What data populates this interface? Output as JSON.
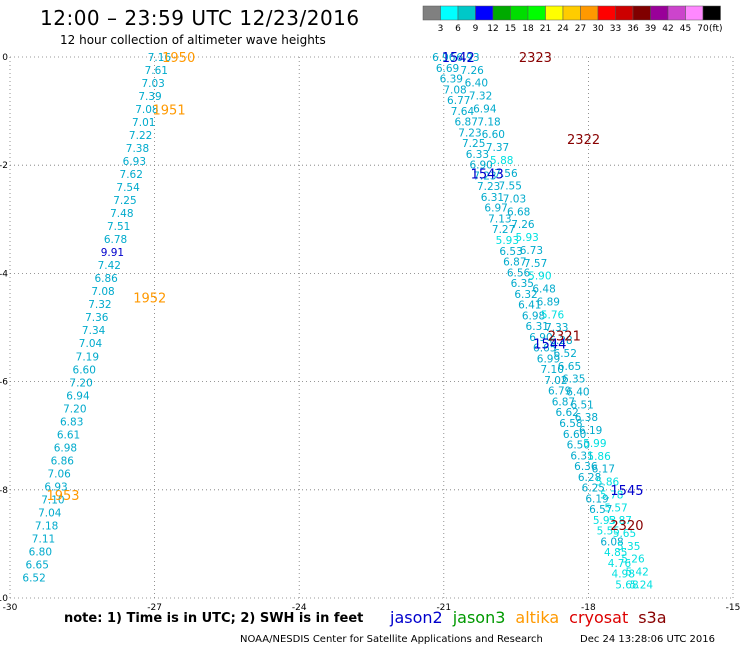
{
  "header": {
    "title": "12:00 – 23:59 UTC 12/23/2016",
    "subtitle": "12 hour collection of altimeter wave heights"
  },
  "color_scale": {
    "colors": [
      "#808080",
      "#00ffff",
      "#00c8c8",
      "#0000ff",
      "#00aa00",
      "#00dd00",
      "#00ff00",
      "#ffff00",
      "#ffcc00",
      "#ff9900",
      "#ff0000",
      "#cc0000",
      "#800000",
      "#990099",
      "#cc44cc",
      "#ff88ff",
      "#000000"
    ],
    "labels": [
      "3",
      "6",
      "9",
      "12",
      "15",
      "18",
      "21",
      "24",
      "27",
      "30",
      "33",
      "36",
      "39",
      "42",
      "45",
      "70"
    ],
    "unit": "(ft)"
  },
  "notes": {
    "note": "note:  1) Time is in UTC;  2) SWH is in feet"
  },
  "missions": [
    {
      "name": "jason2",
      "color": "#0000cc"
    },
    {
      "name": "jason3",
      "color": "#009900"
    },
    {
      "name": "altika",
      "color": "#ff9900"
    },
    {
      "name": "cryosat",
      "color": "#dd0000"
    },
    {
      "name": "s3a",
      "color": "#880000"
    }
  ],
  "footer": {
    "credit": "NOAA/NESDIS Center for Satellite Applications and Research",
    "stamp": "Dec 24 13:28:06 UTC 2016"
  },
  "chart_data": {
    "type": "scatter",
    "xlim": [
      -30,
      -15
    ],
    "ylim": [
      -10,
      0
    ],
    "x_ticks": [
      -30,
      -27,
      -24,
      -21,
      -18,
      -15
    ],
    "y_ticks": [
      0,
      -2,
      -4,
      -6,
      -8,
      -10
    ],
    "grid": true,
    "colors": {
      "low": "#00aacc",
      "mid": "#00e0e0",
      "dark": "#0000cc"
    },
    "track_labels": [
      {
        "text": "1950",
        "x": -26.5,
        "y": 0.0,
        "color": "#ff9900"
      },
      {
        "text": "1951",
        "x": -26.7,
        "y": -0.97,
        "color": "#ff9900"
      },
      {
        "text": "1952",
        "x": -27.1,
        "y": -4.45,
        "color": "#ff9900"
      },
      {
        "text": "1953",
        "x": -28.9,
        "y": -8.1,
        "color": "#ff9900"
      },
      {
        "text": "1542",
        "x": -20.7,
        "y": 0.0,
        "color": "#0000cc"
      },
      {
        "text": "1543",
        "x": -20.1,
        "y": -2.15,
        "color": "#0000cc"
      },
      {
        "text": "1544",
        "x": -18.8,
        "y": -5.3,
        "color": "#0000cc"
      },
      {
        "text": "1545",
        "x": -17.2,
        "y": -8.0,
        "color": "#0000cc"
      },
      {
        "text": "2323",
        "x": -19.1,
        "y": 0.0,
        "color": "#880000"
      },
      {
        "text": "2322",
        "x": -18.1,
        "y": -1.52,
        "color": "#880000"
      },
      {
        "text": "2321",
        "x": -18.5,
        "y": -5.15,
        "color": "#880000"
      },
      {
        "text": "2320",
        "x": -17.2,
        "y": -8.65,
        "color": "#880000"
      }
    ],
    "tracks": [
      {
        "name": "altika",
        "x_start": -26.9,
        "x_end": -29.5,
        "y_start": 0.0,
        "y_end": -9.62,
        "values": [
          "7.16",
          "7.61",
          "7.03",
          "7.39",
          "7.08",
          "7.01",
          "7.22",
          "7.38",
          "6.93",
          "7.62",
          "7.54",
          "7.25",
          "7.48",
          "7.51",
          "6.78",
          "9.91",
          "7.42",
          "6.86",
          "7.08",
          "7.32",
          "7.36",
          "7.34",
          "7.04",
          "7.19",
          "6.60",
          "7.20",
          "6.94",
          "7.20",
          "6.83",
          "6.61",
          "6.98",
          "6.86",
          "7.06",
          "6.93",
          "7.10",
          "7.04",
          "7.18",
          "7.11",
          "6.80",
          "6.65",
          "6.52"
        ]
      },
      {
        "name": "jason2",
        "x_start": -21.0,
        "x_end": -17.2,
        "y_start": 0.0,
        "y_end": -9.75,
        "values": [
          "6.96",
          "6.69",
          "6.39",
          "7.08",
          "6.77",
          "7.64",
          "6.87",
          "7.23",
          "7.25",
          "6.33",
          "6.90",
          "7.23",
          "7.23",
          "6.31",
          "6.97",
          "7.13",
          "7.27",
          "5.93",
          "6.53",
          "6.87",
          "6.56",
          "6.35",
          "6.32",
          "6.41",
          "6.98",
          "6.31",
          "6.90",
          "6.65",
          "6.99",
          "7.10",
          "7.02",
          "6.79",
          "6.87",
          "6.62",
          "6.58",
          "6.60",
          "6.50",
          "6.31",
          "6.36",
          "6.28",
          "6.25",
          "6.19",
          "6.57",
          "5.93",
          "5.55",
          "6.08",
          "4.85",
          "4.76",
          "4.98",
          "5.68"
        ]
      },
      {
        "name": "s3a",
        "x_start": -20.5,
        "x_end": -16.9,
        "y_start": 0.0,
        "y_end": -9.75,
        "values": [
          "6.93",
          "7.26",
          "6.40",
          "7.32",
          "6.94",
          "7.18",
          "6.60",
          "7.37",
          "5.88",
          "7.56",
          "7.55",
          "7.03",
          "6.68",
          "7.26",
          "5.93",
          "6.73",
          "7.57",
          "5.90",
          "6.48",
          "6.89",
          "5.76",
          "7.33",
          "6.28",
          "6.52",
          "6.65",
          "6.35",
          "6.40",
          "6.51",
          "6.38",
          "6.19",
          "5.99",
          "5.86",
          "6.17",
          "5.86",
          "5.78",
          "5.57",
          "5.87",
          "5.65",
          "5.35",
          "5.26",
          "5.42",
          "5.24"
        ]
      }
    ]
  }
}
